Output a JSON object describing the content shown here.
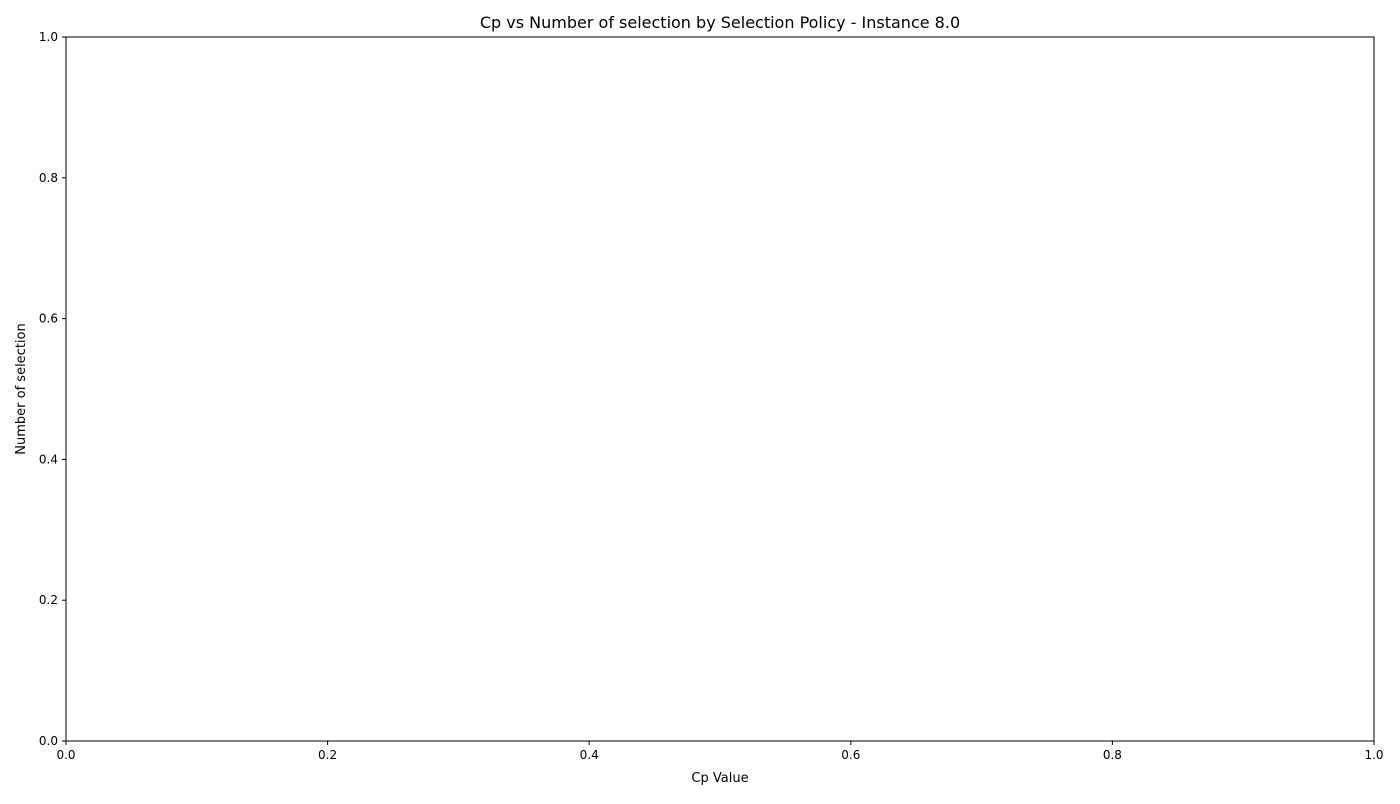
{
  "chart_data": {
    "type": "line",
    "title": "Cp vs Number of selection by Selection Policy - Instance 8.0",
    "xlabel": "Cp Value",
    "ylabel": "Number of selection",
    "xlim": [
      0,
      1
    ],
    "ylim": [
      0,
      1
    ],
    "x_ticks": [
      "0.0",
      "0.2",
      "0.4",
      "0.6",
      "0.8",
      "1.0"
    ],
    "y_ticks": [
      "0.0",
      "0.2",
      "0.4",
      "0.6",
      "0.8",
      "1.0"
    ],
    "x_tick_values": [
      0,
      0.2,
      0.4,
      0.6,
      0.8,
      1.0
    ],
    "y_tick_values": [
      0,
      0.2,
      0.4,
      0.6,
      0.8,
      1.0
    ],
    "grid": false,
    "series": []
  }
}
